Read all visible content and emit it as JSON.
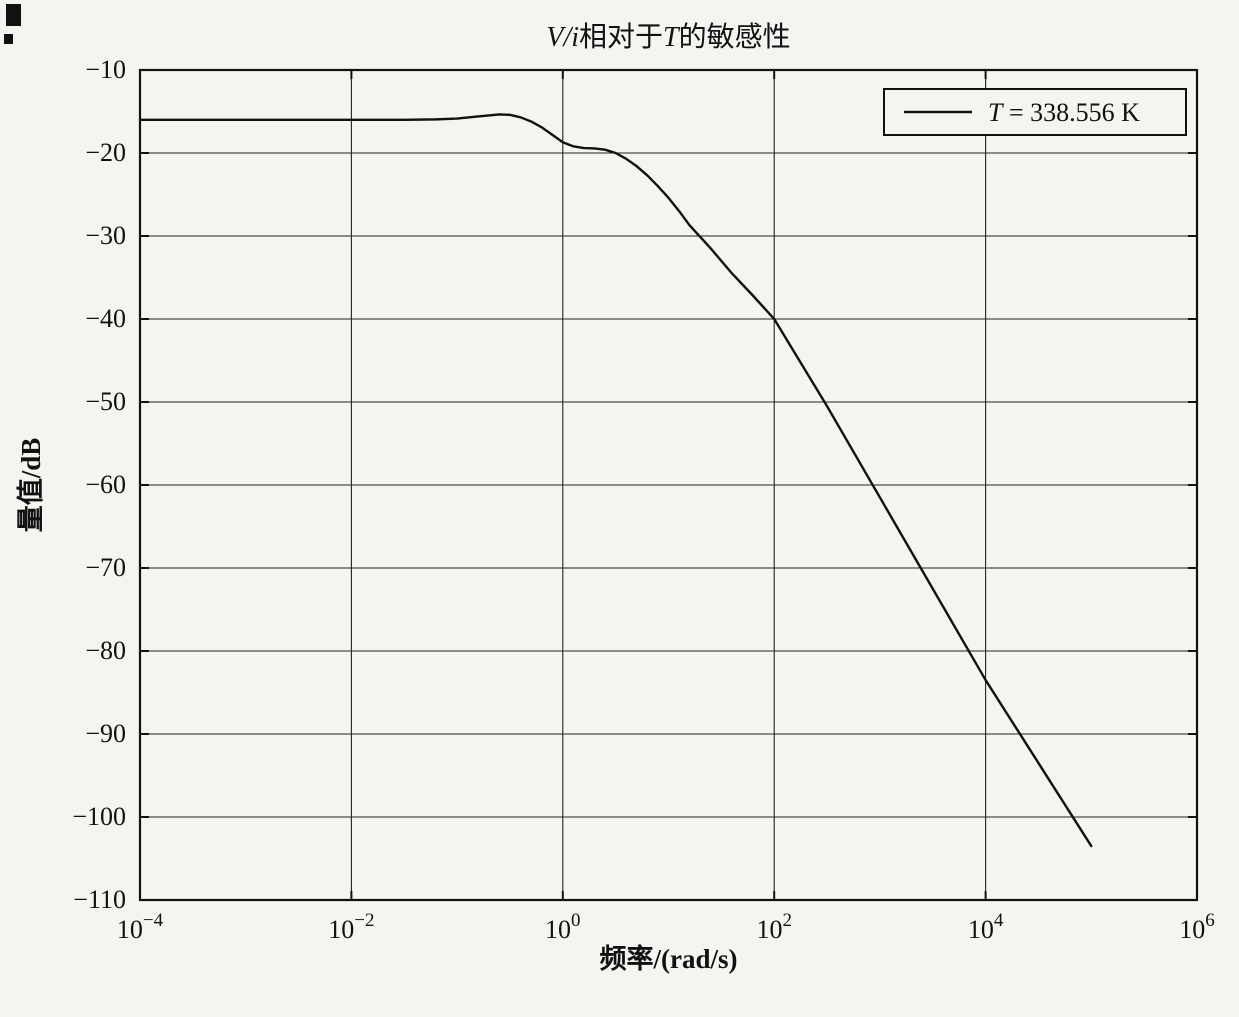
{
  "figure": {
    "background": "#f4f4f1",
    "title_segments": [
      {
        "text": "V/i",
        "italic": true
      },
      {
        "text": "相对于",
        "italic": false
      },
      {
        "text": "T",
        "italic": true
      },
      {
        "text": "的敏感性",
        "italic": false
      }
    ],
    "legend_segments": [
      {
        "text": "T",
        "italic": true
      },
      {
        "text": " = 338.556 K",
        "italic": false
      }
    ]
  },
  "chart_data": {
    "type": "line",
    "title": "V/i相对于T的敏感性",
    "xlabel": "频率/(rad/s)",
    "ylabel": "量值/dB",
    "x_scale": "log",
    "xlim": [
      0.0001,
      1000000
    ],
    "ylim": [
      -110,
      -10
    ],
    "grid": true,
    "legend_position": "top-right",
    "x_ticks": [
      {
        "value": 0.0001,
        "base": "10",
        "exponent": "−4"
      },
      {
        "value": 0.01,
        "base": "10",
        "exponent": "−2"
      },
      {
        "value": 1,
        "base": "10",
        "exponent": "0"
      },
      {
        "value": 100,
        "base": "10",
        "exponent": "2"
      },
      {
        "value": 10000,
        "base": "10",
        "exponent": "4"
      },
      {
        "value": 1000000,
        "base": "10",
        "exponent": "6"
      }
    ],
    "y_ticks": [
      {
        "value": -10,
        "label": "−10"
      },
      {
        "value": -20,
        "label": "−20"
      },
      {
        "value": -30,
        "label": "−30"
      },
      {
        "value": -40,
        "label": "−40"
      },
      {
        "value": -50,
        "label": "−50"
      },
      {
        "value": -60,
        "label": "−60"
      },
      {
        "value": -70,
        "label": "−70"
      },
      {
        "value": -80,
        "label": "−80"
      },
      {
        "value": -90,
        "label": "−90"
      },
      {
        "value": -100,
        "label": "−100"
      },
      {
        "value": -110,
        "label": "−110"
      }
    ],
    "series": [
      {
        "name": "T = 338.556 K",
        "color": "#111111",
        "points": [
          [
            0.0001,
            -16
          ],
          [
            0.001,
            -16
          ],
          [
            0.01,
            -16
          ],
          [
            0.0316,
            -16
          ],
          [
            0.0631,
            -15.95
          ],
          [
            0.1,
            -15.85
          ],
          [
            0.158,
            -15.6
          ],
          [
            0.251,
            -15.35
          ],
          [
            0.316,
            -15.4
          ],
          [
            0.398,
            -15.7
          ],
          [
            0.501,
            -16.2
          ],
          [
            0.631,
            -16.9
          ],
          [
            0.794,
            -17.8
          ],
          [
            1.0,
            -18.7
          ],
          [
            1.26,
            -19.2
          ],
          [
            1.58,
            -19.4
          ],
          [
            2.0,
            -19.45
          ],
          [
            2.51,
            -19.6
          ],
          [
            3.16,
            -20.0
          ],
          [
            3.98,
            -20.7
          ],
          [
            5.01,
            -21.6
          ],
          [
            6.31,
            -22.7
          ],
          [
            7.94,
            -24.0
          ],
          [
            10,
            -25.4
          ],
          [
            12.6,
            -27.0
          ],
          [
            15.8,
            -28.7
          ],
          [
            25.1,
            -31.5
          ],
          [
            39.8,
            -34.5
          ],
          [
            63.1,
            -37.2
          ],
          [
            100,
            -40.0
          ],
          [
            316,
            -50.5
          ],
          [
            1000,
            -61.5
          ],
          [
            3162,
            -72.5
          ],
          [
            10000,
            -83.5
          ],
          [
            31623,
            -93.5
          ],
          [
            100000,
            -103.5
          ]
        ]
      }
    ]
  }
}
